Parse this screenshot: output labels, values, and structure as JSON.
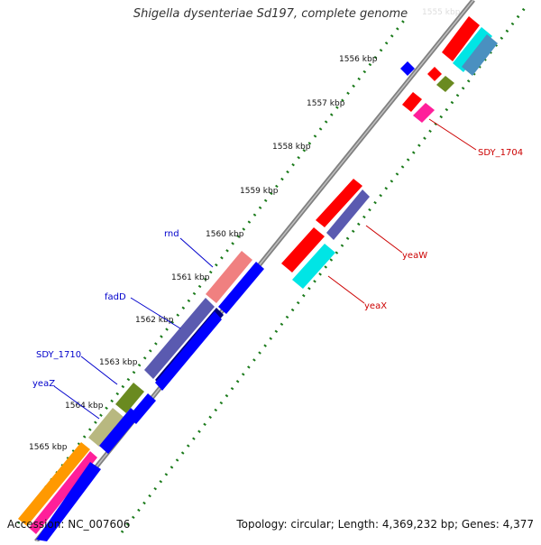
{
  "header": {
    "title": "Shigella dysenteriae Sd197, complete genome"
  },
  "footer": {
    "accession": "Accession: NC_007606",
    "summary": "Topology: circular; Length: 4,369,232 bp; Genes: 4,377"
  },
  "ticks": [
    "1556 kbp",
    "1557 kbp",
    "1558 kbp",
    "1559 kbp",
    "1560 kbp",
    "1561 kbp",
    "1562 kbp",
    "1563 kbp",
    "1564 kbp",
    "1565 kbp"
  ],
  "genes": {
    "left": [
      "rnd",
      "fadD",
      "SDY_1710",
      "yeaZ"
    ],
    "right": [
      "SDY_1704",
      "yeaW",
      "yeaX"
    ]
  },
  "colors": {
    "backbone": "#808080",
    "tick_dots": "#1a7a1a",
    "left_label": "#0000cc",
    "right_label": "#cc0000",
    "red": "#ff0000",
    "blue": "#0000ff",
    "cyan": "#00e5e5",
    "pink": "#f08080",
    "slate": "#5a5ab0",
    "navy": "#00007a",
    "olive": "#6a8a20",
    "khaki": "#b8b880",
    "magenta": "#ff1f9a",
    "orange": "#ff9900"
  }
}
